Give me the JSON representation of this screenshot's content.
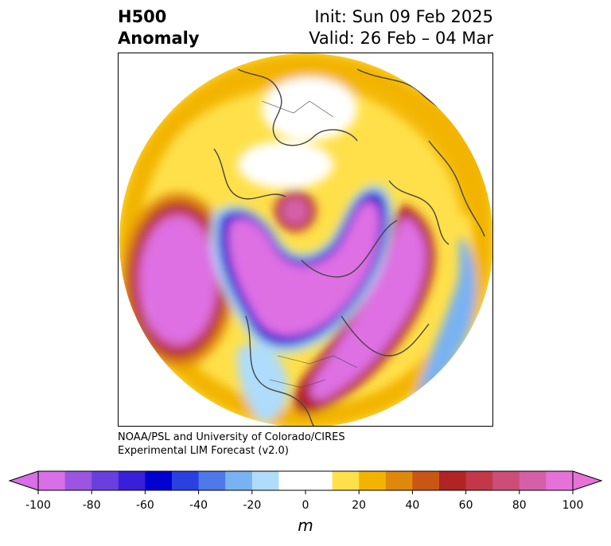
{
  "title": {
    "left_line1": "H500",
    "left_line2": "Anomaly",
    "right_line1": "Init: Sun 09 Feb 2025",
    "right_line2": "Valid: 26 Feb – 04 Mar"
  },
  "credit": {
    "line1": "NOAA/PSL and University of Colorado/CIRES",
    "line2": "Experimental LIM Forecast (v2.0)"
  },
  "colorbar": {
    "units": "m",
    "ticks": [
      "-100",
      "-80",
      "-60",
      "-40",
      "-20",
      "0",
      "20",
      "40",
      "60",
      "80",
      "100"
    ],
    "colors": [
      "#d86ee8",
      "#9b55e0",
      "#6a3fe0",
      "#3a1fd8",
      "#0000d0",
      "#2a40e0",
      "#4f78ea",
      "#79b2f2",
      "#aedcfa",
      "#ffffff",
      "#ffffff",
      "#ffe04a",
      "#f2b400",
      "#e0880a",
      "#c95614",
      "#b02424",
      "#c23848",
      "#cc4e78",
      "#d660a8",
      "#e672d8"
    ]
  },
  "colors": {
    "neg_strong": "#de70e4",
    "neg_deep": "#0000d0",
    "neg_light": "#aedcfa",
    "pos_light": "#ffe04a",
    "pos_mid": "#f2b400",
    "pos_strong": "#b02424",
    "coast": "#444444"
  }
}
